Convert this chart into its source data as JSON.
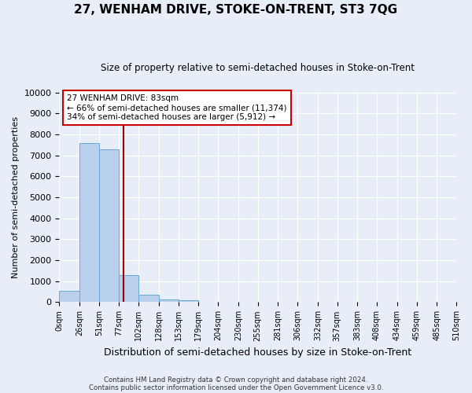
{
  "title": "27, WENHAM DRIVE, STOKE-ON-TRENT, ST3 7QG",
  "subtitle": "Size of property relative to semi-detached houses in Stoke-on-Trent",
  "xlabel": "Distribution of semi-detached houses by size in Stoke-on-Trent",
  "ylabel": "Number of semi-detached properties",
  "bin_edges": [
    0,
    26,
    51,
    77,
    102,
    128,
    153,
    179,
    204,
    230,
    255,
    281,
    306,
    332,
    357,
    383,
    408,
    434,
    459,
    485,
    510
  ],
  "bar_values": [
    550,
    7600,
    7300,
    1300,
    350,
    130,
    100,
    0,
    0,
    0,
    0,
    0,
    0,
    0,
    0,
    0,
    0,
    0,
    0,
    0
  ],
  "bar_color": "#b8d0eb",
  "bar_edgecolor": "#6aaad4",
  "property_size": 83,
  "vline_color": "#990000",
  "annotation_line1": "27 WENHAM DRIVE: 83sqm",
  "annotation_line2": "← 66% of semi-detached houses are smaller (11,374)",
  "annotation_line3": "34% of semi-detached houses are larger (5,912) →",
  "annotation_box_edgecolor": "#cc0000",
  "annotation_box_facecolor": "#ffffff",
  "ylim": [
    0,
    10000
  ],
  "yticks": [
    0,
    1000,
    2000,
    3000,
    4000,
    5000,
    6000,
    7000,
    8000,
    9000,
    10000
  ],
  "ytick_labels": [
    "0",
    "1000",
    "2000",
    "3000",
    "4000",
    "5000",
    "6000",
    "7000",
    "8000",
    "9000",
    "10000"
  ],
  "xtick_labels": [
    "0sqm",
    "26sqm",
    "51sqm",
    "77sqm",
    "102sqm",
    "128sqm",
    "153sqm",
    "179sqm",
    "204sqm",
    "230sqm",
    "255sqm",
    "281sqm",
    "306sqm",
    "332sqm",
    "357sqm",
    "383sqm",
    "408sqm",
    "434sqm",
    "459sqm",
    "485sqm",
    "510sqm"
  ],
  "footer_line1": "Contains HM Land Registry data © Crown copyright and database right 2024.",
  "footer_line2": "Contains public sector information licensed under the Open Government Licence v3.0.",
  "background_color": "#e8eef7",
  "plot_bg_color": "#e8eef7",
  "grid_color": "#ffffff"
}
